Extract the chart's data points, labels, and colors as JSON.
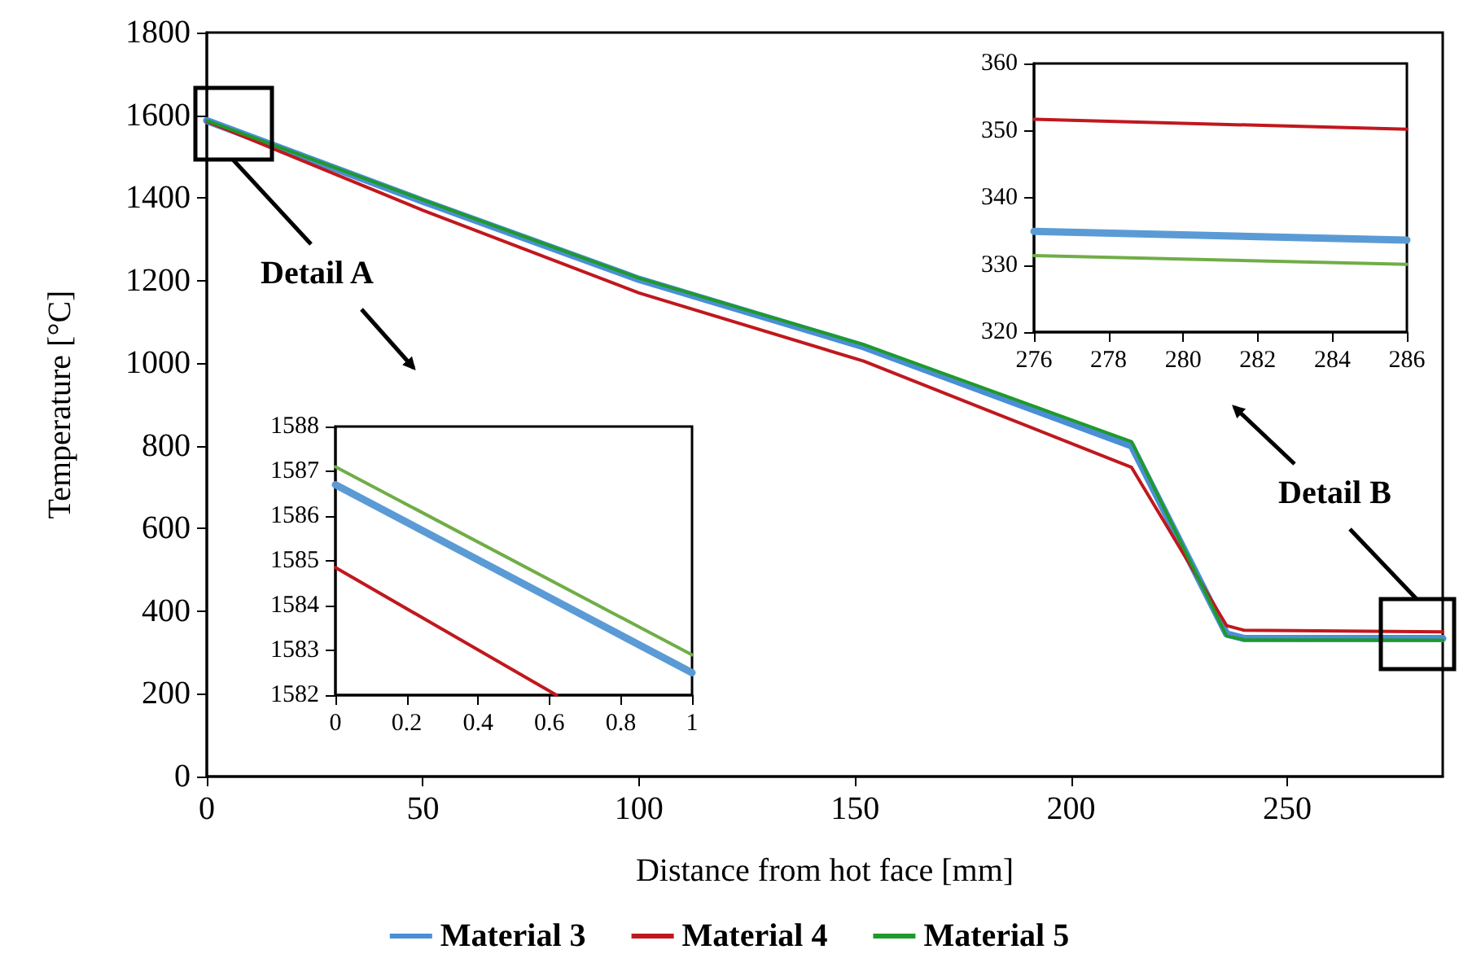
{
  "chart_data": [
    {
      "type": "line",
      "xlabel": "Distance from hot face [mm]",
      "ylabel": "Temperature [°C]",
      "xlim": [
        0,
        286
      ],
      "xticks": [
        0,
        50,
        100,
        150,
        200,
        250
      ],
      "ylim": [
        0,
        1800
      ],
      "yticks": [
        0,
        200,
        400,
        600,
        800,
        1000,
        1200,
        1400,
        1600,
        1800
      ],
      "legend": "bottom",
      "marker": "none",
      "line_style": "solid",
      "annotations": [
        "Detail A",
        "Detail B"
      ],
      "series": [
        {
          "name": "Material 3",
          "color": "#4a8fd6",
          "x": [
            0,
            50,
            100,
            152,
            214,
            236,
            240,
            286
          ],
          "values": [
            1587,
            1392,
            1203,
            1040,
            800,
            345,
            334,
            334
          ]
        },
        {
          "name": "Material 4",
          "color": "#c0181e",
          "x": [
            0,
            50,
            100,
            152,
            214,
            236,
            240,
            286
          ],
          "values": [
            1585,
            1370,
            1170,
            1005,
            748,
            365,
            354,
            350
          ]
        },
        {
          "name": "Material 5",
          "color": "#1f9a2a",
          "x": [
            0,
            50,
            100,
            152,
            214,
            236,
            240,
            286
          ],
          "values": [
            1587,
            1395,
            1206,
            1045,
            810,
            340,
            331,
            330
          ]
        }
      ]
    },
    {
      "type": "line",
      "xlim": [
        0,
        1
      ],
      "xticks": [
        0,
        0.2,
        0.4,
        0.6,
        0.8,
        1
      ],
      "ylim": [
        1582,
        1588
      ],
      "yticks": [
        1582,
        1583,
        1584,
        1585,
        1586,
        1587,
        1588
      ],
      "marker": "none",
      "line_style": "solid",
      "series": [
        {
          "color": "#5b9bd5",
          "x": [
            0,
            1
          ],
          "values": [
            1586.7,
            1582.5
          ]
        },
        {
          "color": "#c0181e",
          "x": [
            0,
            0.62
          ],
          "values": [
            1584.85,
            1582
          ]
        },
        {
          "color": "#70ad47",
          "x": [
            0,
            1
          ],
          "values": [
            1587.1,
            1582.9
          ]
        }
      ]
    },
    {
      "type": "line",
      "xlim": [
        276,
        286
      ],
      "xticks": [
        276,
        278,
        280,
        282,
        284,
        286
      ],
      "ylim": [
        320,
        360
      ],
      "yticks": [
        320,
        330,
        340,
        350,
        360
      ],
      "marker": "none",
      "line_style": "solid",
      "series": [
        {
          "color": "#5b9bd5",
          "x": [
            276,
            286
          ],
          "values": [
            335,
            333.7
          ]
        },
        {
          "color": "#c0181e",
          "x": [
            276,
            286
          ],
          "values": [
            351.7,
            350.2
          ]
        },
        {
          "color": "#70ad47",
          "x": [
            276,
            286
          ],
          "values": [
            331.4,
            330.1
          ]
        }
      ]
    }
  ]
}
